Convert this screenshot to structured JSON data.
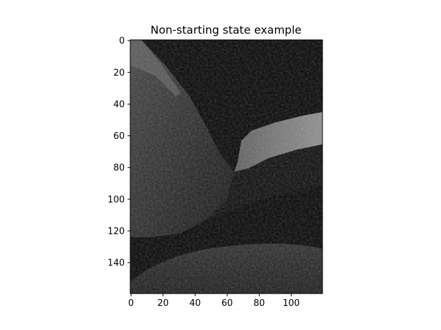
{
  "chart_data": {
    "type": "heatmap",
    "title": "Non-starting state example",
    "xlabel": "",
    "ylabel": "",
    "image_shape": [
      160,
      120
    ],
    "colormap": "gray",
    "xlim": [
      -0.5,
      119.5
    ],
    "ylim": [
      159.5,
      -0.5
    ],
    "x_ticks": [
      0,
      20,
      40,
      60,
      80,
      100
    ],
    "y_ticks": [
      0,
      20,
      40,
      60,
      80,
      100,
      120,
      140
    ],
    "x_tick_labels": [
      "0",
      "20",
      "40",
      "60",
      "80",
      "100"
    ],
    "y_tick_labels": [
      "0",
      "20",
      "40",
      "60",
      "80",
      "100",
      "120",
      "140"
    ],
    "grid": false,
    "legend": "none"
  }
}
